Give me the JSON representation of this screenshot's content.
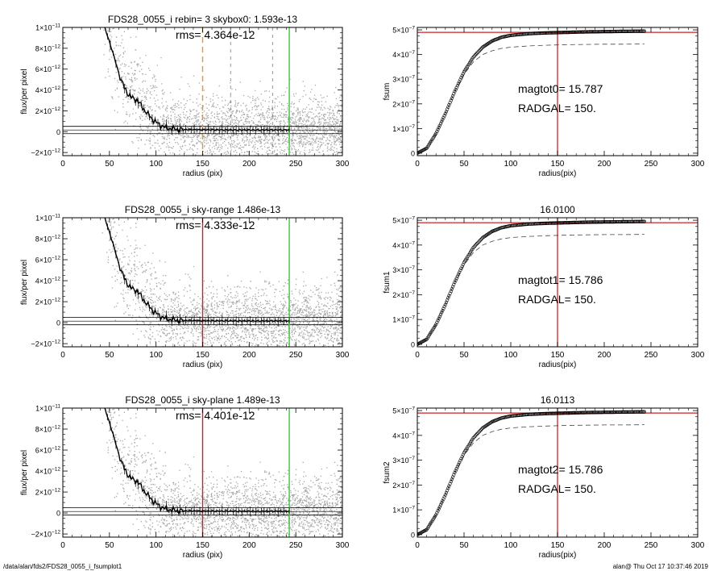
{
  "footer": {
    "left": "/data/alan/fds2/FDS28_0055_i_fsumplot1",
    "right": "alan@  Thu Oct 17 10:37:46 2019"
  },
  "colors": {
    "scatter": "#a8a8a8",
    "profile": "#000000",
    "red_line": "#cc2222",
    "green_line": "#33cc33",
    "orange_dash": "#e8952e"
  },
  "chart_data": [
    {
      "type": "scatter",
      "title": "FDS28_0055_i rebin= 3    skybox0:  1.593e-13",
      "annotation": "rms= 4.364e-12",
      "xlabel": "radius (pix)",
      "ylabel": "flux/per pixel",
      "xlim": [
        0,
        300
      ],
      "ylim": [
        -2.3e-12,
        1e-11
      ],
      "xticks": [
        0,
        50,
        100,
        150,
        200,
        250,
        300
      ],
      "xtick_labels": [
        "0",
        "50",
        "100",
        "150",
        "200",
        "250",
        "300"
      ],
      "yticks": [
        -2e-12,
        0,
        2e-12,
        4e-12,
        6e-12,
        8e-12,
        1e-11
      ],
      "ytick_labels": [
        {
          "m": "−2×10",
          "e": "−12"
        },
        {
          "m": "0",
          "e": ""
        },
        {
          "m": "2×10",
          "e": "−12"
        },
        {
          "m": "4×10",
          "e": "−12"
        },
        {
          "m": "6×10",
          "e": "−12"
        },
        {
          "m": "8×10",
          "e": "−12"
        },
        {
          "m": "1×10",
          "e": "−11"
        }
      ],
      "sky_level": 1.593e-13,
      "vlines": [
        {
          "x": 150,
          "color": "orange_dash",
          "style": "dashed"
        },
        {
          "x": 243,
          "color": "green_line",
          "style": "solid"
        }
      ],
      "extra_dashed_x": [
        180,
        225
      ],
      "profile": {
        "x": [
          45,
          55,
          60,
          65,
          70,
          75,
          80,
          85,
          90,
          95,
          100,
          105,
          110,
          115,
          120,
          130,
          140,
          150,
          160,
          170,
          180,
          190,
          200,
          210,
          220,
          230,
          243
        ],
        "y": [
          1e-11,
          7.2e-12,
          5.6e-12,
          4.4e-12,
          3.6e-12,
          3.2e-12,
          3e-12,
          2.4e-12,
          1.8e-12,
          1.3e-12,
          9e-13,
          6e-13,
          4e-13,
          3e-13,
          2.5e-13,
          2e-13,
          2e-13,
          1.8e-13,
          1.8e-13,
          1.7e-13,
          1.7e-13,
          1.6e-13,
          1.6e-13,
          1.6e-13,
          1.6e-13,
          1.6e-13,
          1.6e-13
        ]
      }
    },
    {
      "type": "line",
      "title": "",
      "annotation": "magtot0=  15.787",
      "annotation2": "RADGAL=    150.",
      "xlabel": "radius(pix)",
      "ylabel": "fsum",
      "xlim": [
        0,
        300
      ],
      "ylim": [
        -1e-08,
        5.1e-07
      ],
      "xticks": [
        0,
        50,
        100,
        150,
        200,
        250,
        300
      ],
      "xtick_labels": [
        "0",
        "50",
        "100",
        "150",
        "200",
        "250",
        "300"
      ],
      "yticks": [
        0,
        1e-07,
        2e-07,
        3e-07,
        4e-07,
        5e-07
      ],
      "ytick_labels": [
        {
          "m": "0",
          "e": ""
        },
        {
          "m": "1×10",
          "e": "−7"
        },
        {
          "m": "2×10",
          "e": "−7"
        },
        {
          "m": "3×10",
          "e": "−7"
        },
        {
          "m": "4×10",
          "e": "−7"
        },
        {
          "m": "5×10",
          "e": "−7"
        }
      ],
      "hline": 4.9e-07,
      "vline": 150,
      "curve": {
        "x": [
          0,
          10,
          20,
          30,
          40,
          50,
          60,
          70,
          80,
          90,
          100,
          120,
          140,
          160,
          180,
          200,
          220,
          243
        ],
        "y": [
          0,
          2e-08,
          8e-08,
          1.6e-07,
          2.5e-07,
          3.3e-07,
          3.9e-07,
          4.3e-07,
          4.55e-07,
          4.7e-07,
          4.78e-07,
          4.85e-07,
          4.88e-07,
          4.9e-07,
          4.92e-07,
          4.93e-07,
          4.94e-07,
          4.95e-07
        ]
      },
      "dashed": {
        "x": [
          0,
          10,
          20,
          30,
          40,
          50,
          60,
          70,
          80,
          90,
          100,
          120,
          140,
          160,
          180,
          200,
          220,
          243
        ],
        "y": [
          0,
          2e-08,
          8e-08,
          1.6e-07,
          2.5e-07,
          3.2e-07,
          3.7e-07,
          4e-07,
          4.15e-07,
          4.25e-07,
          4.3e-07,
          4.35e-07,
          4.38e-07,
          4.4e-07,
          4.41e-07,
          4.42e-07,
          4.42e-07,
          4.43e-07
        ]
      }
    },
    {
      "type": "scatter",
      "title": "FDS28_0055_i sky-range  1.486e-13",
      "annotation": "rms= 4.333e-12",
      "xlabel": "radius (pix)",
      "ylabel": "flux/per pixel",
      "xlim": [
        0,
        300
      ],
      "ylim": [
        -2.3e-12,
        1e-11
      ],
      "xticks": [
        0,
        50,
        100,
        150,
        200,
        250,
        300
      ],
      "xtick_labels": [
        "0",
        "50",
        "100",
        "150",
        "200",
        "250",
        "300"
      ],
      "yticks": [
        -2e-12,
        0,
        2e-12,
        4e-12,
        6e-12,
        8e-12,
        1e-11
      ],
      "ytick_labels": [
        {
          "m": "−2×10",
          "e": "−12"
        },
        {
          "m": "0",
          "e": ""
        },
        {
          "m": "2×10",
          "e": "−12"
        },
        {
          "m": "4×10",
          "e": "−12"
        },
        {
          "m": "6×10",
          "e": "−12"
        },
        {
          "m": "8×10",
          "e": "−12"
        },
        {
          "m": "1×10",
          "e": "−11"
        }
      ],
      "sky_level": 1.486e-13,
      "vlines": [
        {
          "x": 150,
          "color": "red_line",
          "style": "solid"
        },
        {
          "x": 243,
          "color": "green_line",
          "style": "solid"
        }
      ],
      "profile": {
        "x": [
          45,
          55,
          60,
          65,
          70,
          75,
          80,
          85,
          90,
          95,
          100,
          105,
          110,
          115,
          120,
          130,
          140,
          150,
          160,
          170,
          180,
          190,
          200,
          210,
          220,
          230,
          243
        ],
        "y": [
          1e-11,
          7.2e-12,
          5.6e-12,
          4.4e-12,
          3.6e-12,
          3.2e-12,
          3e-12,
          2.4e-12,
          1.8e-12,
          1.3e-12,
          9e-13,
          6e-13,
          4e-13,
          3e-13,
          2.5e-13,
          2e-13,
          2e-13,
          1.8e-13,
          1.8e-13,
          1.7e-13,
          1.7e-13,
          1.6e-13,
          1.6e-13,
          1.6e-13,
          1.6e-13,
          1.6e-13,
          1.6e-13
        ]
      }
    },
    {
      "type": "line",
      "title": "16.0100",
      "annotation": "magtot1=  15.786",
      "annotation2": "RADGAL=    150.",
      "xlabel": "radius(pix)",
      "ylabel": "fsum1",
      "xlim": [
        0,
        300
      ],
      "ylim": [
        -1e-08,
        5.1e-07
      ],
      "xticks": [
        0,
        50,
        100,
        150,
        200,
        250,
        300
      ],
      "xtick_labels": [
        "0",
        "50",
        "100",
        "150",
        "200",
        "250",
        "300"
      ],
      "yticks": [
        0,
        1e-07,
        2e-07,
        3e-07,
        4e-07,
        5e-07
      ],
      "ytick_labels": [
        {
          "m": "0",
          "e": ""
        },
        {
          "m": "1×10",
          "e": "−7"
        },
        {
          "m": "2×10",
          "e": "−7"
        },
        {
          "m": "3×10",
          "e": "−7"
        },
        {
          "m": "4×10",
          "e": "−7"
        },
        {
          "m": "5×10",
          "e": "−7"
        }
      ],
      "hline": 4.9e-07,
      "vline": 150,
      "curve": {
        "x": [
          0,
          10,
          20,
          30,
          40,
          50,
          60,
          70,
          80,
          90,
          100,
          120,
          140,
          160,
          180,
          200,
          220,
          243
        ],
        "y": [
          0,
          2e-08,
          8e-08,
          1.6e-07,
          2.5e-07,
          3.3e-07,
          3.9e-07,
          4.3e-07,
          4.55e-07,
          4.7e-07,
          4.78e-07,
          4.85e-07,
          4.88e-07,
          4.9e-07,
          4.92e-07,
          4.93e-07,
          4.94e-07,
          4.95e-07
        ]
      },
      "dashed": {
        "x": [
          0,
          10,
          20,
          30,
          40,
          50,
          60,
          70,
          80,
          90,
          100,
          120,
          140,
          160,
          180,
          200,
          220,
          243
        ],
        "y": [
          0,
          2e-08,
          8e-08,
          1.6e-07,
          2.5e-07,
          3.2e-07,
          3.7e-07,
          4e-07,
          4.15e-07,
          4.25e-07,
          4.3e-07,
          4.35e-07,
          4.38e-07,
          4.4e-07,
          4.41e-07,
          4.42e-07,
          4.42e-07,
          4.43e-07
        ]
      }
    },
    {
      "type": "scatter",
      "title": "FDS28_0055_i sky-plane  1.489e-13",
      "annotation": "rms= 4.401e-12",
      "xlabel": "radius (pix)",
      "ylabel": "flux/per pixel",
      "xlim": [
        0,
        300
      ],
      "ylim": [
        -2.3e-12,
        1e-11
      ],
      "xticks": [
        0,
        50,
        100,
        150,
        200,
        250,
        300
      ],
      "xtick_labels": [
        "0",
        "50",
        "100",
        "150",
        "200",
        "250",
        "300"
      ],
      "yticks": [
        -2e-12,
        0,
        2e-12,
        4e-12,
        6e-12,
        8e-12,
        1e-11
      ],
      "ytick_labels": [
        {
          "m": "−2×10",
          "e": "−12"
        },
        {
          "m": "0",
          "e": ""
        },
        {
          "m": "2×10",
          "e": "−12"
        },
        {
          "m": "4×10",
          "e": "−12"
        },
        {
          "m": "6×10",
          "e": "−12"
        },
        {
          "m": "8×10",
          "e": "−12"
        },
        {
          "m": "1×10",
          "e": "−11"
        }
      ],
      "sky_level": 1.489e-13,
      "vlines": [
        {
          "x": 150,
          "color": "red_line",
          "style": "solid"
        },
        {
          "x": 243,
          "color": "green_line",
          "style": "solid"
        }
      ],
      "profile": {
        "x": [
          45,
          55,
          60,
          65,
          70,
          75,
          80,
          85,
          90,
          95,
          100,
          105,
          110,
          115,
          120,
          130,
          140,
          150,
          160,
          170,
          180,
          190,
          200,
          210,
          220,
          230,
          243
        ],
        "y": [
          1e-11,
          7.2e-12,
          5.6e-12,
          4.4e-12,
          3.6e-12,
          3.2e-12,
          3e-12,
          2.4e-12,
          1.8e-12,
          1.3e-12,
          9e-13,
          6e-13,
          4e-13,
          3e-13,
          2.5e-13,
          2e-13,
          2e-13,
          1.8e-13,
          1.8e-13,
          1.7e-13,
          1.7e-13,
          1.6e-13,
          1.6e-13,
          1.6e-13,
          1.6e-13,
          1.6e-13,
          1.6e-13
        ]
      }
    },
    {
      "type": "line",
      "title": "16.0113",
      "annotation": "magtot2=  15.786",
      "annotation2": "RADGAL=    150.",
      "xlabel": "radius(pix)",
      "ylabel": "fsum2",
      "xlim": [
        0,
        300
      ],
      "ylim": [
        -1e-08,
        5.1e-07
      ],
      "xticks": [
        0,
        50,
        100,
        150,
        200,
        250,
        300
      ],
      "xtick_labels": [
        "0",
        "50",
        "100",
        "150",
        "200",
        "250",
        "300"
      ],
      "yticks": [
        0,
        1e-07,
        2e-07,
        3e-07,
        4e-07,
        5e-07
      ],
      "ytick_labels": [
        {
          "m": "0",
          "e": ""
        },
        {
          "m": "1×10",
          "e": "−7"
        },
        {
          "m": "2×10",
          "e": "−7"
        },
        {
          "m": "3×10",
          "e": "−7"
        },
        {
          "m": "4×10",
          "e": "−7"
        },
        {
          "m": "5×10",
          "e": "−7"
        }
      ],
      "hline": 4.9e-07,
      "vline": 150,
      "curve": {
        "x": [
          0,
          10,
          20,
          30,
          40,
          50,
          60,
          70,
          80,
          90,
          100,
          120,
          140,
          160,
          180,
          200,
          220,
          243
        ],
        "y": [
          0,
          2e-08,
          8e-08,
          1.6e-07,
          2.5e-07,
          3.3e-07,
          3.9e-07,
          4.3e-07,
          4.55e-07,
          4.7e-07,
          4.78e-07,
          4.85e-07,
          4.88e-07,
          4.9e-07,
          4.92e-07,
          4.93e-07,
          4.94e-07,
          4.95e-07
        ]
      },
      "dashed": {
        "x": [
          0,
          10,
          20,
          30,
          40,
          50,
          60,
          70,
          80,
          90,
          100,
          120,
          140,
          160,
          180,
          200,
          220,
          243
        ],
        "y": [
          0,
          2e-08,
          8e-08,
          1.6e-07,
          2.5e-07,
          3.2e-07,
          3.7e-07,
          4e-07,
          4.15e-07,
          4.25e-07,
          4.3e-07,
          4.35e-07,
          4.38e-07,
          4.4e-07,
          4.41e-07,
          4.42e-07,
          4.42e-07,
          4.43e-07
        ]
      }
    }
  ]
}
